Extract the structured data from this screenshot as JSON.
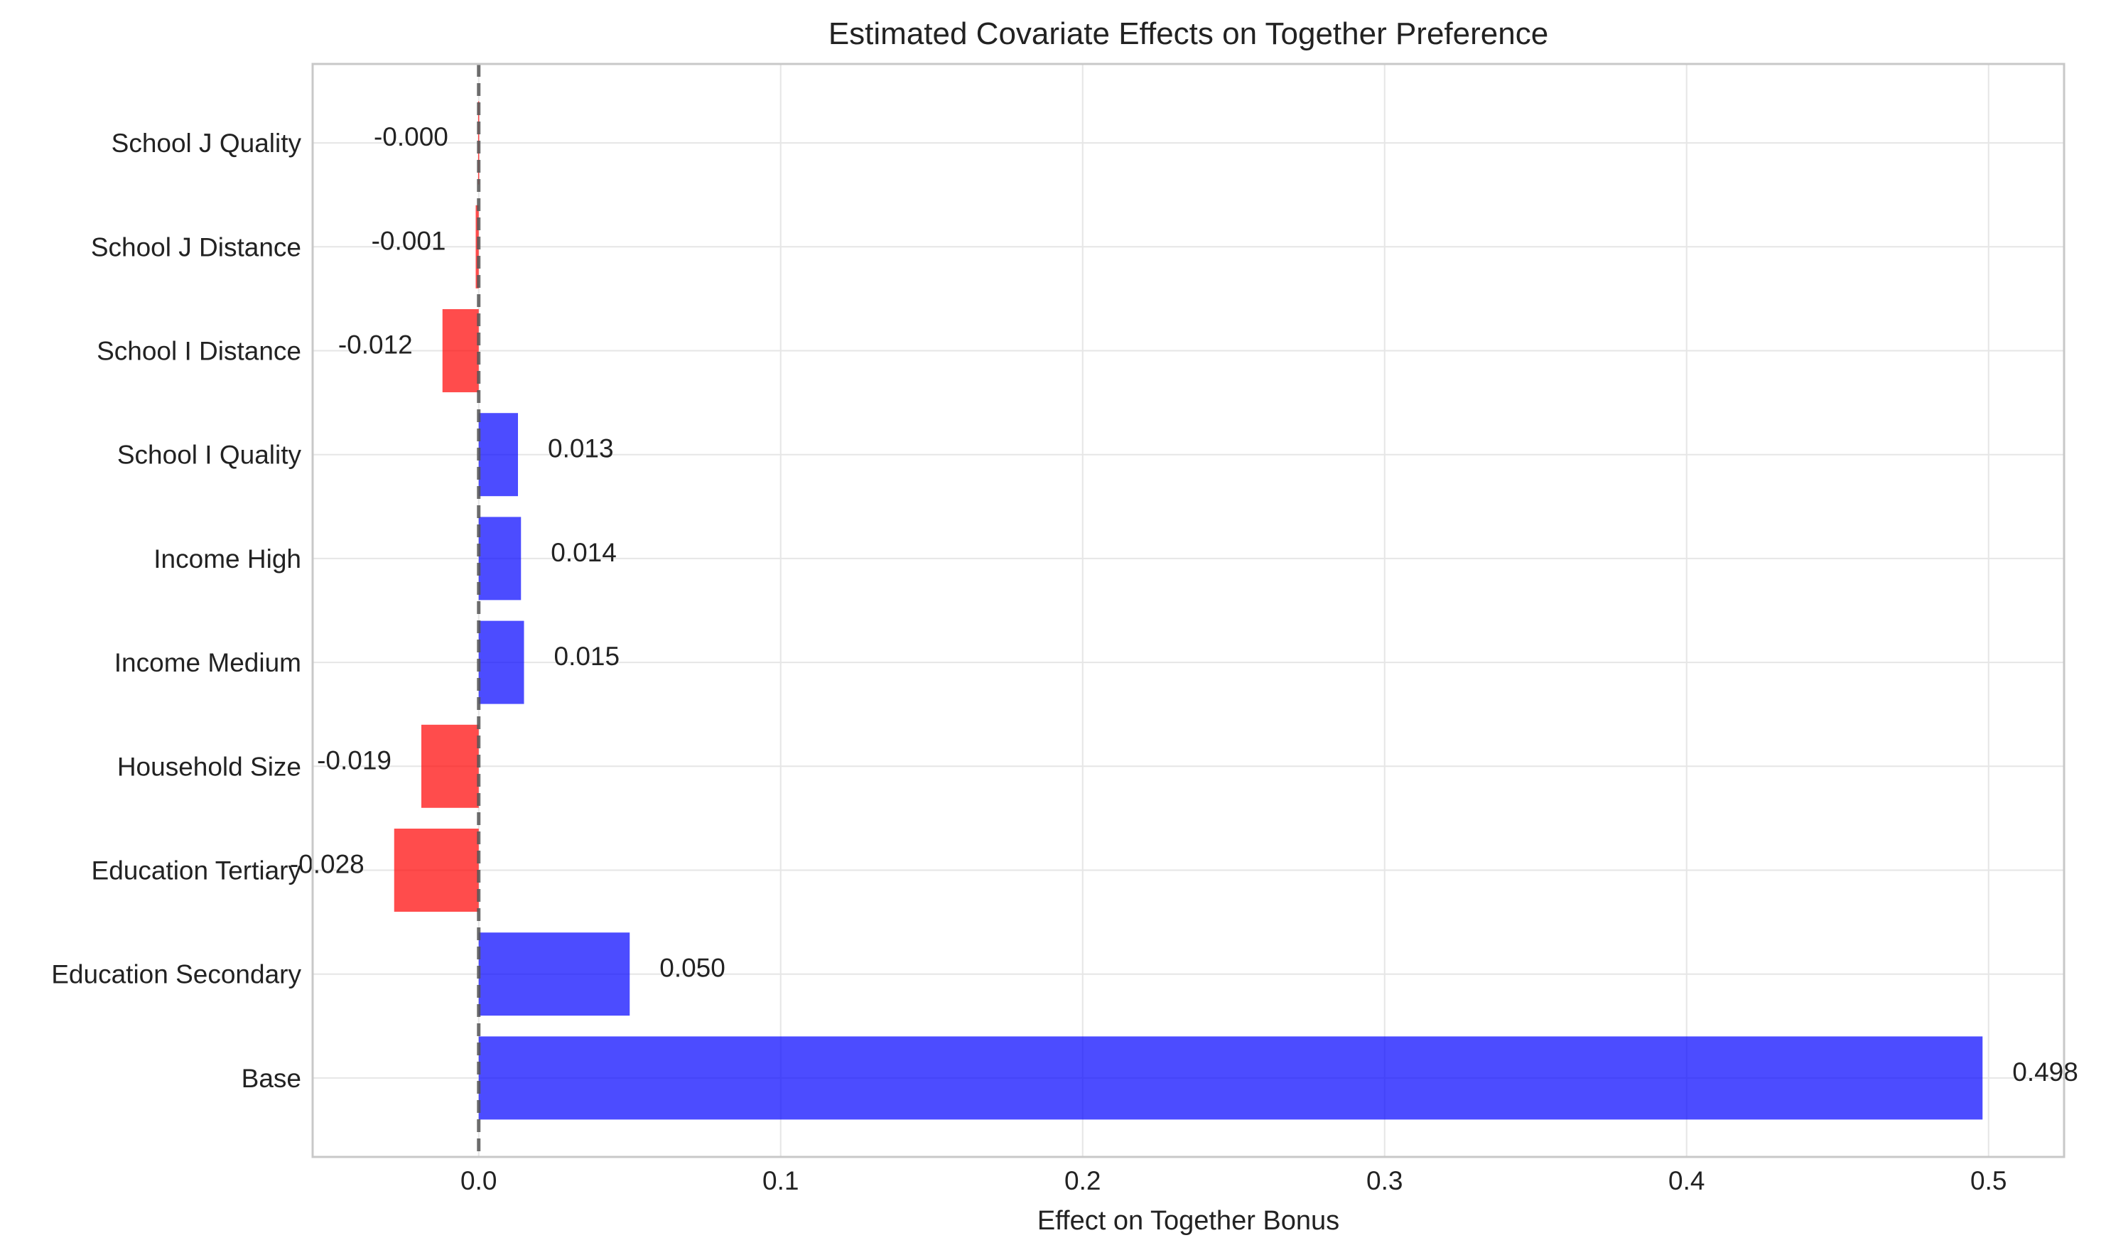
{
  "chart_data": {
    "type": "bar",
    "orientation": "horizontal",
    "title": "Estimated Covariate Effects on Together Preference",
    "xlabel": "Effect on Together Bonus",
    "ylabel": "",
    "xlim": [
      -0.055,
      0.525
    ],
    "x_ticks": [
      0.0,
      0.1,
      0.2,
      0.3,
      0.4,
      0.5
    ],
    "x_tick_labels": [
      "0.0",
      "0.1",
      "0.2",
      "0.3",
      "0.4",
      "0.5"
    ],
    "grid": true,
    "reference_line": {
      "x": 0,
      "style": "dashed",
      "color": "#555555"
    },
    "colors": {
      "positive": "#0000ff",
      "negative": "#ff0000",
      "bar_alpha": 0.7
    },
    "categories": [
      "Base",
      "Education Secondary",
      "Education Tertiary",
      "Household Size",
      "Income Medium",
      "Income High",
      "School I Quality",
      "School I Distance",
      "School J Distance",
      "School J Quality"
    ],
    "values": [
      0.498,
      0.05,
      -0.028,
      -0.019,
      0.015,
      0.014,
      0.013,
      -0.012,
      -0.001,
      -0.0002
    ],
    "value_labels": [
      "0.498",
      "0.050",
      "-0.028",
      "-0.019",
      "0.015",
      "0.014",
      "0.013",
      "-0.012",
      "-0.001",
      "-0.000"
    ]
  }
}
